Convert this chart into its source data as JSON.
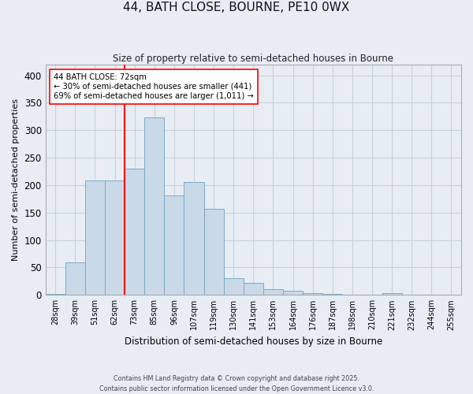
{
  "title1": "44, BATH CLOSE, BOURNE, PE10 0WX",
  "title2": "Size of property relative to semi-detached houses in Bourne",
  "xlabel": "Distribution of semi-detached houses by size in Bourne",
  "ylabel": "Number of semi-detached properties",
  "categories": [
    "28sqm",
    "39sqm",
    "51sqm",
    "62sqm",
    "73sqm",
    "85sqm",
    "96sqm",
    "107sqm",
    "119sqm",
    "130sqm",
    "141sqm",
    "153sqm",
    "164sqm",
    "176sqm",
    "187sqm",
    "198sqm",
    "210sqm",
    "221sqm",
    "232sqm",
    "244sqm",
    "255sqm"
  ],
  "values": [
    2,
    60,
    209,
    209,
    230,
    323,
    181,
    205,
    157,
    30,
    22,
    11,
    8,
    4,
    2,
    1,
    1,
    3,
    0,
    0,
    0
  ],
  "bar_color": "#c9d9e8",
  "bar_edge_color": "#7aaac8",
  "grid_color": "#c8d0dc",
  "background_color": "#e8edf4",
  "vline_color": "red",
  "annotation_title": "44 BATH CLOSE: 72sqm",
  "annotation_line1": "← 30% of semi-detached houses are smaller (441)",
  "annotation_line2": "69% of semi-detached houses are larger (1,011) →",
  "footer1": "Contains HM Land Registry data © Crown copyright and database right 2025.",
  "footer2": "Contains public sector information licensed under the Open Government Licence v3.0.",
  "ylim": [
    0,
    420
  ],
  "yticks": [
    0,
    50,
    100,
    150,
    200,
    250,
    300,
    350,
    400
  ]
}
